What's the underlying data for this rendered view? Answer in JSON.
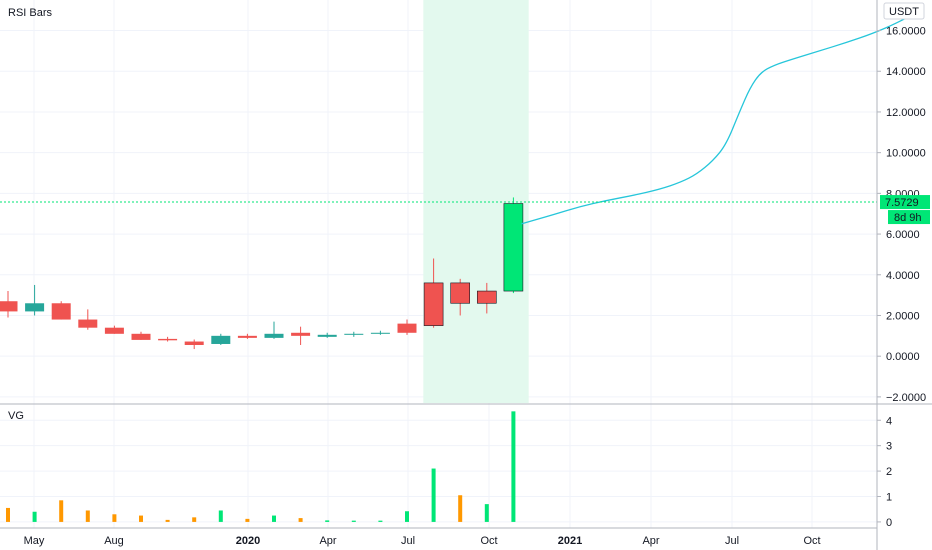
{
  "price_panel": {
    "title": "RSI Bars",
    "currency_badge": "USDT",
    "last_price_label": "7.5729",
    "countdown_label": "8d 9h",
    "highlight_color": "#e3f9ee"
  },
  "volume_panel": {
    "title": "VG"
  },
  "time_axis": {
    "labels": [
      {
        "text": "May",
        "bold": false
      },
      {
        "text": "Aug",
        "bold": false
      },
      {
        "text": "2020",
        "bold": true
      },
      {
        "text": "Apr",
        "bold": false
      },
      {
        "text": "Jul",
        "bold": false
      },
      {
        "text": "Oct",
        "bold": false
      },
      {
        "text": "2021",
        "bold": true
      },
      {
        "text": "Apr",
        "bold": false
      },
      {
        "text": "Jul",
        "bold": false
      },
      {
        "text": "Oct",
        "bold": false
      }
    ]
  },
  "colors": {
    "up_teal": "#26a69a",
    "up_green": "#00e676",
    "down_red": "#ef5350",
    "vol_orange": "#ff9800",
    "vol_green": "#00e676",
    "projection": "#26c6da",
    "grid": "#f0f3fa",
    "axis": "#b2b5be"
  },
  "chart_data": [
    {
      "type": "candlestick",
      "title": "RSI Bars",
      "y_unit": "USDT",
      "ylim": [
        -2.3,
        17.5
      ],
      "y_ticks": [
        "16.0000",
        "14.0000",
        "12.0000",
        "10.0000",
        "8.0000",
        "6.0000",
        "4.0000",
        "2.0000",
        "0.0000",
        "−2.0000"
      ],
      "y_tick_values": [
        16,
        14,
        12,
        10,
        8,
        6,
        4,
        2,
        0,
        -2
      ],
      "grid": true,
      "last_value": 7.5729,
      "candles": [
        {
          "o": 2.2,
          "h": 3.2,
          "l": 1.9,
          "c": 2.7,
          "color": "down"
        },
        {
          "o": 2.2,
          "h": 3.5,
          "l": 2.0,
          "c": 2.6,
          "color": "up_teal"
        },
        {
          "o": 2.6,
          "h": 2.7,
          "l": 1.8,
          "c": 1.8,
          "color": "down"
        },
        {
          "o": 1.8,
          "h": 2.3,
          "l": 1.3,
          "c": 1.4,
          "color": "down"
        },
        {
          "o": 1.4,
          "h": 1.5,
          "l": 1.1,
          "c": 1.1,
          "color": "down"
        },
        {
          "o": 1.1,
          "h": 1.2,
          "l": 0.8,
          "c": 0.8,
          "color": "down"
        },
        {
          "o": 0.85,
          "h": 0.95,
          "l": 0.72,
          "c": 0.78,
          "color": "down"
        },
        {
          "o": 0.72,
          "h": 0.82,
          "l": 0.35,
          "c": 0.55,
          "color": "down"
        },
        {
          "o": 0.6,
          "h": 1.1,
          "l": 0.55,
          "c": 1.0,
          "color": "up_teal"
        },
        {
          "o": 1.0,
          "h": 1.1,
          "l": 0.85,
          "c": 0.9,
          "color": "down"
        },
        {
          "o": 0.9,
          "h": 1.7,
          "l": 0.85,
          "c": 1.1,
          "color": "up_teal"
        },
        {
          "o": 1.15,
          "h": 1.45,
          "l": 0.55,
          "c": 1.0,
          "color": "down"
        },
        {
          "o": 0.95,
          "h": 1.15,
          "l": 0.9,
          "c": 1.05,
          "color": "up_teal"
        },
        {
          "o": 1.05,
          "h": 1.2,
          "l": 0.95,
          "c": 1.1,
          "color": "up_teal"
        },
        {
          "o": 1.1,
          "h": 1.25,
          "l": 1.05,
          "c": 1.15,
          "color": "up_teal"
        },
        {
          "o": 1.6,
          "h": 1.8,
          "l": 1.05,
          "c": 1.15,
          "color": "down"
        },
        {
          "o": 3.6,
          "h": 4.8,
          "l": 1.4,
          "c": 1.5,
          "color": "down"
        },
        {
          "o": 3.6,
          "h": 3.8,
          "l": 2.0,
          "c": 2.6,
          "color": "down"
        },
        {
          "o": 3.2,
          "h": 3.6,
          "l": 2.1,
          "c": 2.6,
          "color": "down"
        },
        {
          "o": 3.2,
          "h": 7.8,
          "l": 3.1,
          "c": 7.5,
          "color": "up_green"
        }
      ],
      "projection": [
        [
          19.3,
          6.5
        ],
        [
          20.5,
          6.95
        ],
        [
          21.5,
          7.35
        ],
        [
          22.5,
          7.65
        ],
        [
          23.5,
          7.9
        ],
        [
          24.5,
          8.2
        ],
        [
          25.3,
          8.55
        ],
        [
          25.9,
          8.95
        ],
        [
          26.5,
          9.6
        ],
        [
          27.0,
          10.4
        ],
        [
          27.5,
          12.0
        ],
        [
          27.9,
          13.2
        ],
        [
          28.3,
          13.95
        ],
        [
          28.8,
          14.3
        ],
        [
          29.5,
          14.6
        ],
        [
          30.5,
          15.0
        ],
        [
          31.5,
          15.4
        ],
        [
          32.5,
          15.85
        ],
        [
          33.3,
          16.3
        ],
        [
          33.9,
          16.7
        ]
      ]
    },
    {
      "type": "bar",
      "title": "VG",
      "ylim": [
        -0.2,
        4.6
      ],
      "y_ticks": [
        "4",
        "3",
        "2",
        "1",
        "0"
      ],
      "y_tick_values": [
        4,
        3,
        2,
        1,
        0
      ],
      "values": [
        0.55,
        0.4,
        0.85,
        0.45,
        0.3,
        0.25,
        0.08,
        0.18,
        0.45,
        0.12,
        0.25,
        0.15,
        0.06,
        0.05,
        0.05,
        0.42,
        2.1,
        1.05,
        0.7,
        4.35
      ],
      "bar_colors": [
        "orange",
        "green",
        "orange",
        "orange",
        "orange",
        "orange",
        "orange",
        "orange",
        "green",
        "orange",
        "green",
        "orange",
        "green",
        "green",
        "green",
        "green",
        "green",
        "orange",
        "green",
        "green"
      ]
    }
  ]
}
